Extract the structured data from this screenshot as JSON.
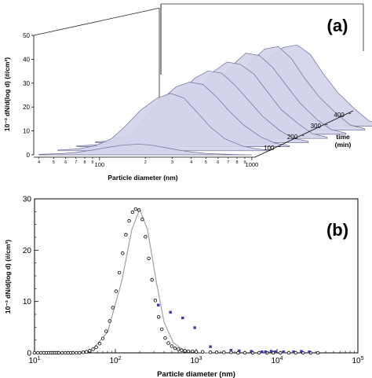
{
  "chart_data": [
    {
      "panel_label": "(a)",
      "type": "area",
      "chart_kind": "3d-waterfall",
      "ylabel": "10⁻³ dN/d(log d) (#/cm³)",
      "xlabel": "Particle diameter (nm)",
      "zlabel": "time (min)",
      "x_scale": "log",
      "x_ticks": [
        "4",
        "5",
        "6",
        "7",
        "8",
        "9",
        "100",
        "2",
        "3",
        "4",
        "5",
        "6",
        "7",
        "8",
        "9",
        "1000"
      ],
      "y_ticks": [
        "0",
        "10",
        "20",
        "30",
        "40",
        "50"
      ],
      "z_ticks": [
        "100",
        "200",
        "300",
        "400"
      ],
      "ylim": [
        0,
        50
      ],
      "zlim": [
        0,
        400
      ],
      "fill_color": "#d3d2ea",
      "line_color": "#6e6e98",
      "series_times": [
        0,
        60,
        120,
        180,
        240,
        300,
        360,
        420
      ],
      "profile_x": [
        40,
        55,
        70,
        90,
        110,
        140,
        180,
        220,
        270,
        330,
        400,
        500,
        650,
        800,
        1000
      ],
      "series": [
        {
          "time": 0,
          "values": [
            0.2,
            0.5,
            1.0,
            2.0,
            3.0,
            4.0,
            4.5,
            4.0,
            3.0,
            2.0,
            1.2,
            0.6,
            0.3,
            0.1,
            0.0
          ]
        },
        {
          "time": 60,
          "values": [
            0.3,
            0.8,
            2.0,
            5.0,
            10.0,
            17.0,
            22.0,
            24.0,
            22.0,
            16.0,
            10.0,
            5.0,
            2.0,
            0.8,
            0.2
          ]
        },
        {
          "time": 120,
          "values": [
            0.3,
            0.8,
            2.0,
            5.0,
            11.0,
            19.0,
            25.0,
            27.0,
            26.0,
            21.0,
            15.0,
            9.0,
            4.0,
            1.5,
            0.4
          ]
        },
        {
          "time": 180,
          "values": [
            0.3,
            0.8,
            2.0,
            5.0,
            11.0,
            20.0,
            27.0,
            30.0,
            29.0,
            24.0,
            18.0,
            11.0,
            5.0,
            1.8,
            0.5
          ]
        },
        {
          "time": 240,
          "values": [
            0.3,
            0.8,
            2.0,
            5.0,
            11.0,
            20.0,
            28.0,
            32.0,
            31.0,
            27.0,
            20.0,
            12.0,
            6.0,
            2.0,
            0.5
          ]
        },
        {
          "time": 300,
          "values": [
            0.3,
            0.8,
            2.0,
            5.0,
            11.0,
            20.0,
            29.0,
            34.0,
            33.0,
            28.0,
            21.0,
            13.0,
            6.0,
            2.0,
            0.5
          ]
        },
        {
          "time": 360,
          "values": [
            0.3,
            0.8,
            2.0,
            5.0,
            11.0,
            20.0,
            29.0,
            34.0,
            35.0,
            30.0,
            22.0,
            14.0,
            7.0,
            2.2,
            0.6
          ]
        },
        {
          "time": 420,
          "values": [
            0.3,
            0.8,
            2.0,
            5.0,
            11.0,
            20.0,
            29.0,
            33.0,
            34.0,
            30.0,
            22.0,
            14.0,
            7.0,
            2.2,
            0.6
          ]
        }
      ]
    },
    {
      "panel_label": "(b)",
      "type": "scatter",
      "xlabel": "Particle diameter (nm)",
      "ylabel": "10⁻³ dN/d(log d) (#/cm³)",
      "x_scale": "log",
      "xlim": [
        10,
        100000
      ],
      "ylim": [
        0,
        30
      ],
      "x_tick_values": [
        10,
        100,
        1000,
        10000,
        100000
      ],
      "x_ticks": [
        {
          "base": "10",
          "exp": "1"
        },
        {
          "base": "10",
          "exp": "2"
        },
        {
          "base": "10",
          "exp": "3"
        },
        {
          "base": "10",
          "exp": "4"
        },
        {
          "base": "10",
          "exp": "5"
        }
      ],
      "y_tick_values": [
        0,
        10,
        20,
        30
      ],
      "y_ticks": [
        "0",
        "10",
        "20",
        "30"
      ],
      "series": [
        {
          "marker": "open-circle",
          "color": "#000000",
          "x": [
            10,
            11,
            12,
            13,
            14,
            15,
            16,
            17,
            18,
            19,
            20,
            22,
            24,
            26,
            28,
            30,
            33,
            36,
            40,
            44,
            48,
            53,
            58,
            64,
            70,
            77,
            85,
            93,
            102,
            112,
            123,
            135,
            148,
            163,
            178,
            196,
            215,
            236,
            259,
            284,
            312,
            343,
            376,
            413,
            453,
            498,
            547,
            600,
            660,
            725,
            800,
            900,
            1000,
            1200,
            1500,
            1800,
            2200,
            2700,
            3300,
            4000,
            5000,
            6000,
            7500,
            9000,
            11000,
            14000,
            17000,
            21000,
            26000,
            32000
          ],
          "y": [
            0,
            0,
            0,
            0,
            0,
            0,
            0,
            0,
            0,
            0,
            0,
            0,
            0,
            0,
            0,
            0,
            0,
            0,
            0.1,
            0.2,
            0.4,
            0.7,
            1.1,
            1.8,
            2.8,
            4.2,
            6.2,
            8.8,
            12.0,
            15.6,
            19.4,
            23.0,
            25.7,
            27.4,
            28.0,
            27.8,
            26.0,
            22.6,
            18.4,
            14.2,
            10.2,
            7.0,
            4.6,
            2.9,
            1.9,
            1.3,
            0.9,
            0.7,
            0.5,
            0.4,
            0.3,
            0.3,
            0.2,
            0.2,
            0.1,
            0.1,
            0.1,
            0.1,
            0,
            0,
            0,
            0,
            0,
            0,
            0,
            0,
            0,
            0,
            0,
            0
          ]
        },
        {
          "marker": "filled-square",
          "color": "#3a3aa8",
          "x": [
            340,
            480,
            680,
            960,
            1500,
            2700,
            3400,
            4800,
            6500,
            7200,
            8500,
            9500,
            12000,
            16000,
            20000,
            25000
          ],
          "y": [
            9.3,
            7.9,
            6.8,
            4.9,
            1.2,
            0.5,
            0.4,
            0.3,
            0.2,
            0.2,
            0.3,
            0.2,
            0.2,
            0.2,
            0.3,
            0.2
          ]
        },
        {
          "marker": "line",
          "color": "#9a9a9a",
          "kind": "lognormal-fit",
          "x": [
            30,
            50,
            80,
            120,
            160,
            200,
            250,
            320,
            400,
            520,
            700,
            1000,
            1500
          ],
          "y": [
            0,
            0.4,
            4.0,
            14.0,
            24.0,
            28.0,
            24.0,
            14.0,
            6.0,
            2.0,
            0.5,
            0.1,
            0
          ]
        }
      ]
    }
  ]
}
